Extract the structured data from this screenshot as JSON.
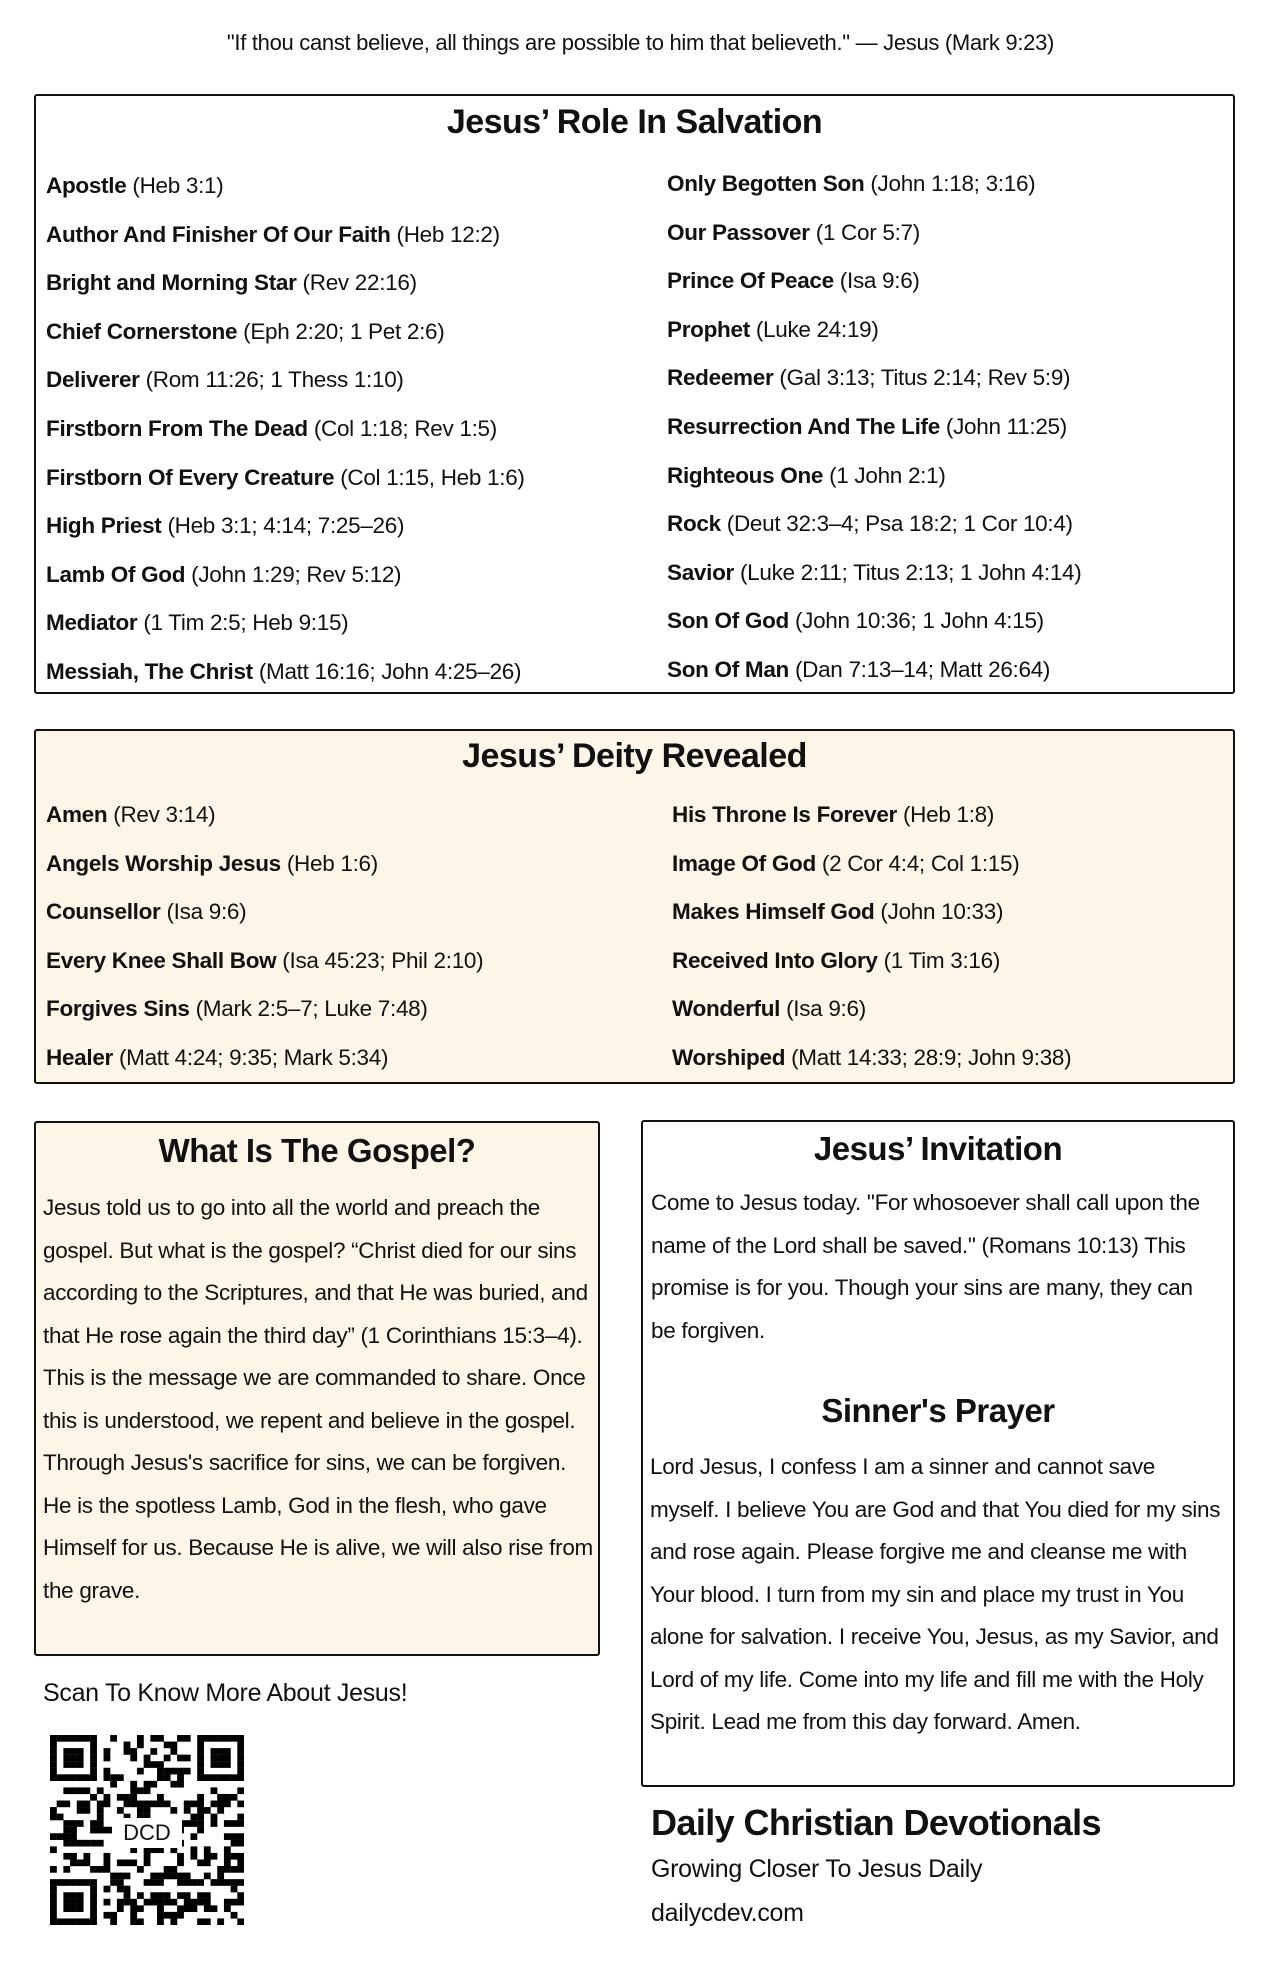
{
  "quote": "\"If thou canst believe, all things are possible to him that believeth.\" — Jesus (Mark 9:23)",
  "role": {
    "title": "Jesus’ Role In Salvation",
    "left": [
      {
        "name": "Apostle",
        "ref": "(Heb 3:1)"
      },
      {
        "name": "Author And Finisher Of Our Faith",
        "ref": "(Heb 12:2)"
      },
      {
        "name": "Bright and Morning Star",
        "ref": "(Rev 22:16)"
      },
      {
        "name": "Chief Cornerstone",
        "ref": "(Eph 2:20; 1 Pet 2:6)"
      },
      {
        "name": "Deliverer",
        "ref": "(Rom 11:26; 1 Thess 1:10)"
      },
      {
        "name": "Firstborn From The Dead",
        "ref": "(Col 1:18; Rev 1:5)"
      },
      {
        "name": "Firstborn Of Every Creature",
        "ref": "(Col 1:15, Heb 1:6)"
      },
      {
        "name": "High Priest",
        "ref": "(Heb 3:1; 4:14; 7:25–26)"
      },
      {
        "name": "Lamb Of God",
        "ref": "(John 1:29; Rev 5:12)"
      },
      {
        "name": "Mediator",
        "ref": "(1 Tim 2:5; Heb 9:15)"
      },
      {
        "name": "Messiah, The Christ",
        "ref": "(Matt 16:16; John 4:25–26)"
      }
    ],
    "right": [
      {
        "name": "Only Begotten Son",
        "ref": "(John 1:18; 3:16)"
      },
      {
        "name": "Our Passover",
        "ref": "(1 Cor 5:7)"
      },
      {
        "name": "Prince Of Peace",
        "ref": "(Isa 9:6)"
      },
      {
        "name": "Prophet",
        "ref": "(Luke 24:19)"
      },
      {
        "name": "Redeemer",
        "ref": "(Gal 3:13; Titus 2:14; Rev 5:9)"
      },
      {
        "name": "Resurrection And The Life",
        "ref": "(John 11:25)"
      },
      {
        "name": "Righteous One",
        "ref": "(1 John 2:1)"
      },
      {
        "name": "Rock",
        "ref": "(Deut 32:3–4; Psa 18:2; 1 Cor 10:4)"
      },
      {
        "name": "Savior",
        "ref": "(Luke 2:11; Titus 2:13; 1 John 4:14)"
      },
      {
        "name": "Son Of God",
        "ref": "(John 10:36; 1 John 4:15)"
      },
      {
        "name": "Son Of Man",
        "ref": "(Dan 7:13–14; Matt 26:64)"
      }
    ]
  },
  "deity": {
    "title": "Jesus’ Deity Revealed",
    "left": [
      {
        "name": "Amen",
        "ref": "(Rev 3:14)"
      },
      {
        "name": "Angels Worship Jesus",
        "ref": "(Heb 1:6)"
      },
      {
        "name": "Counsellor",
        "ref": "(Isa 9:6)"
      },
      {
        "name": "Every Knee Shall Bow",
        "ref": "(Isa 45:23; Phil 2:10)"
      },
      {
        "name": "Forgives Sins",
        "ref": "(Mark 2:5–7; Luke 7:48)"
      },
      {
        "name": "Healer",
        "ref": "(Matt 4:24; 9:35; Mark 5:34)"
      }
    ],
    "right": [
      {
        "name": "His Throne Is Forever",
        "ref": "(Heb 1:8)"
      },
      {
        "name": "Image Of God",
        "ref": "(2 Cor 4:4; Col 1:15)"
      },
      {
        "name": "Makes Himself God",
        "ref": "(John 10:33)"
      },
      {
        "name": "Received Into Glory",
        "ref": "(1 Tim 3:16)"
      },
      {
        "name": "Wonderful",
        "ref": "(Isa 9:6)"
      },
      {
        "name": "Worshiped",
        "ref": "(Matt 14:33; 28:9; John 9:38)"
      }
    ]
  },
  "gospel": {
    "title": "What Is The Gospel?",
    "text": "Jesus told us to go into all the world and preach the gospel. But what is the gospel?  “Christ died for our sins according to the Scriptures, and that He was buried, and that He rose again the third day” (1 Corinthians 15:3–4). This is the message we are commanded to share. Once this is understood, we repent and believe in the gospel. Through Jesus's sacrifice for sins, we can be forgiven. He is the spotless Lamb, God in the flesh, who gave Himself for us. Because He is alive, we will also rise from the grave."
  },
  "invitation": {
    "title": "Jesus’ Invitation",
    "text": "Come to Jesus today. \"For whosoever shall call upon the name of the Lord shall be saved.\" (Romans 10:13) This promise is for you. Though your sins are many, they can be forgiven.",
    "prayer_title": "Sinner's Prayer",
    "prayer": "Lord Jesus, I confess I am a sinner and cannot save myself.  I believe You are God and that You died for my sins and rose again.  Please forgive me and cleanse me with Your blood.  I turn from my sin and place my trust in You alone for salvation.  I receive You, Jesus, as my Savior, and Lord of my life.  Come into my life and fill me with the Holy Spirit.  Lead me from this day forward.  Amen."
  },
  "scan": {
    "label": "Scan To Know More About Jesus!",
    "qr_center": "DCD"
  },
  "brand": {
    "name": "Daily Christian Devotionals",
    "tagline": "Growing Closer To Jesus Daily",
    "url": "dailycdev.com"
  },
  "colors": {
    "cream": "#fdf6e8",
    "border": "#111111"
  }
}
